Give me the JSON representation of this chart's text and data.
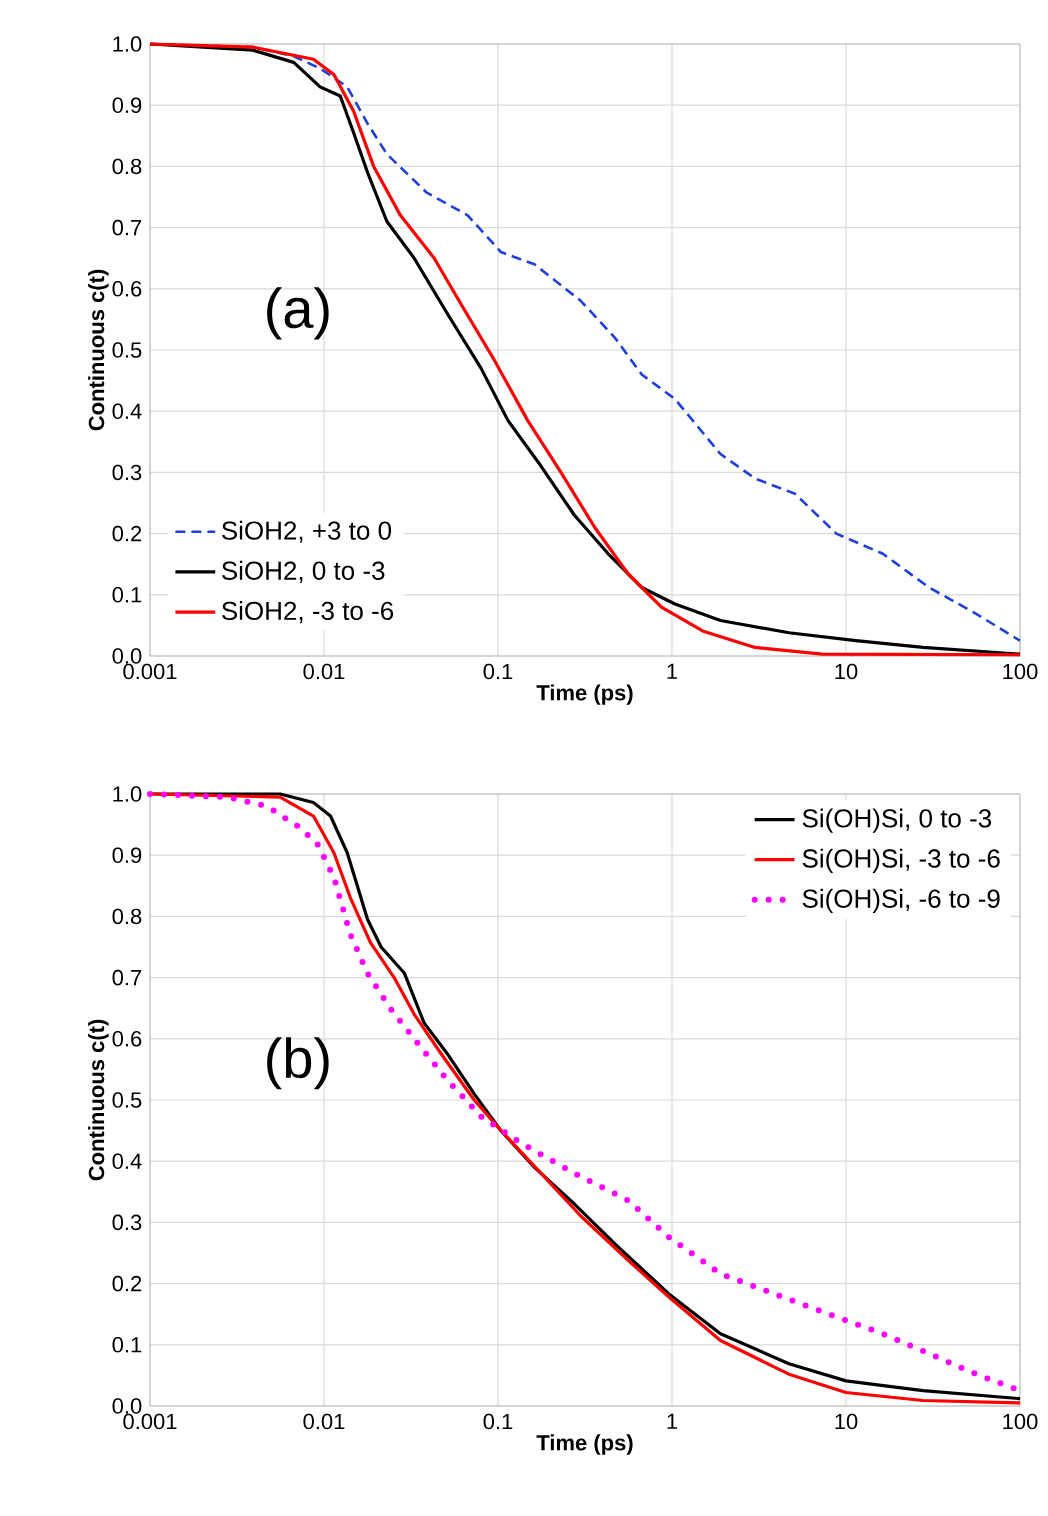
{
  "chart_data": [
    {
      "type": "line",
      "ylabel": "Continuous c(t)",
      "xlabel": "Time (ps)",
      "annotations": [
        "(a)"
      ],
      "log": "x",
      "grid": true,
      "legend": "bottom left",
      "marker": "none",
      "xlim": [
        0.001,
        100
      ],
      "xticks": [
        0.001,
        0.01,
        0.1,
        1,
        10,
        100
      ],
      "ylim": [
        0,
        1
      ],
      "yticks": [
        {
          "value": 0,
          "label": "0.0"
        },
        {
          "value": 0.1,
          "label": "0.1"
        },
        {
          "value": 0.2,
          "label": "0.2"
        },
        {
          "value": 0.3,
          "label": "0.3"
        },
        {
          "value": 0.4,
          "label": "0.4"
        },
        {
          "value": 0.5,
          "label": "0.5"
        },
        {
          "value": 0.6,
          "label": "0.6"
        },
        {
          "value": 0.7,
          "label": "0.7"
        },
        {
          "value": 0.8,
          "label": "0.8"
        },
        {
          "value": 0.9,
          "label": "0.9"
        },
        {
          "value": 1,
          "label": "1.0"
        }
      ],
      "series": [
        {
          "name": "SiOH2, +3 to 0",
          "color": "#1f3fdc",
          "line_style": "dashed",
          "x": [
            0.001,
            0.0039,
            0.0067,
            0.0095,
            0.0136,
            0.0178,
            0.023,
            0.039,
            0.067,
            0.104,
            0.162,
            0.3,
            0.47,
            0.67,
            1.04,
            1.9,
            3.0,
            5.1,
            8.8,
            16.3,
            30,
            56,
            100
          ],
          "values": [
            1.0,
            0.995,
            0.98,
            0.96,
            0.93,
            0.87,
            0.82,
            0.757,
            0.72,
            0.66,
            0.64,
            0.58,
            0.52,
            0.46,
            0.42,
            0.33,
            0.29,
            0.265,
            0.2,
            0.167,
            0.112,
            0.069,
            0.025
          ]
        },
        {
          "name": "SiOH2, 0 to -3",
          "color": "#000000",
          "line_style": "solid",
          "x": [
            0.001,
            0.0039,
            0.0067,
            0.0095,
            0.0124,
            0.0148,
            0.0178,
            0.023,
            0.033,
            0.051,
            0.08,
            0.114,
            0.177,
            0.275,
            0.43,
            0.67,
            1.04,
            1.9,
            4.7,
            11.4,
            27.7,
            100
          ],
          "values": [
            1.0,
            0.99,
            0.97,
            0.93,
            0.915,
            0.855,
            0.79,
            0.71,
            0.65,
            0.56,
            0.47,
            0.385,
            0.31,
            0.23,
            0.167,
            0.112,
            0.085,
            0.058,
            0.038,
            0.025,
            0.014,
            0.003
          ]
        },
        {
          "name": "SiOH2, -3 to -6",
          "color": "#ff0000",
          "line_style": "solid",
          "x": [
            0.001,
            0.0039,
            0.0087,
            0.0114,
            0.0148,
            0.0193,
            0.0275,
            0.043,
            0.061,
            0.095,
            0.148,
            0.23,
            0.36,
            0.56,
            0.87,
            1.5,
            3.0,
            7.3,
            100
          ],
          "values": [
            1.0,
            0.995,
            0.975,
            0.95,
            0.89,
            0.8,
            0.72,
            0.65,
            0.576,
            0.484,
            0.385,
            0.3,
            0.21,
            0.134,
            0.08,
            0.041,
            0.014,
            0.003,
            0.002
          ]
        }
      ]
    },
    {
      "type": "line",
      "ylabel": "Continuous c(t)",
      "xlabel": "Time (ps)",
      "annotations": [
        "(b)"
      ],
      "log": "x",
      "grid": true,
      "legend": "top right",
      "marker": "none",
      "xlim": [
        0.001,
        100
      ],
      "xticks": [
        0.001,
        0.01,
        0.1,
        1,
        10,
        100
      ],
      "ylim": [
        0,
        1
      ],
      "yticks": [
        {
          "value": 0,
          "label": "0.0"
        },
        {
          "value": 0.1,
          "label": "0.1"
        },
        {
          "value": 0.2,
          "label": "0.2"
        },
        {
          "value": 0.3,
          "label": "0.3"
        },
        {
          "value": 0.4,
          "label": "0.4"
        },
        {
          "value": 0.5,
          "label": "0.5"
        },
        {
          "value": 0.6,
          "label": "0.6"
        },
        {
          "value": 0.7,
          "label": "0.7"
        },
        {
          "value": 0.8,
          "label": "0.8"
        },
        {
          "value": 0.9,
          "label": "0.9"
        },
        {
          "value": 1,
          "label": "1.0"
        }
      ],
      "series": [
        {
          "name": "Si(OH)Si, 0 to -3",
          "color": "#000000",
          "line_style": "solid",
          "x": [
            0.001,
            0.0056,
            0.0087,
            0.0109,
            0.0136,
            0.0178,
            0.0213,
            0.029,
            0.0376,
            0.051,
            0.073,
            0.104,
            0.162,
            0.275,
            0.47,
            0.96,
            1.9,
            4.7,
            10,
            27.7,
            100
          ],
          "values": [
            1.0,
            1.0,
            0.986,
            0.964,
            0.904,
            0.795,
            0.75,
            0.707,
            0.626,
            0.576,
            0.51,
            0.45,
            0.39,
            0.33,
            0.265,
            0.183,
            0.118,
            0.069,
            0.041,
            0.025,
            0.012
          ]
        },
        {
          "name": "Si(OH)Si, -3 to -6",
          "color": "#ff0000",
          "line_style": "solid",
          "x": [
            0.001,
            0.0056,
            0.0087,
            0.0114,
            0.0142,
            0.0185,
            0.0253,
            0.033,
            0.047,
            0.073,
            0.104,
            0.177,
            0.3,
            0.56,
            0.96,
            1.9,
            4.7,
            10,
            27.7,
            100
          ],
          "values": [
            1.0,
            0.995,
            0.964,
            0.904,
            0.83,
            0.757,
            0.7,
            0.64,
            0.576,
            0.5,
            0.45,
            0.38,
            0.31,
            0.238,
            0.178,
            0.107,
            0.052,
            0.022,
            0.009,
            0.005
          ]
        },
        {
          "name": "Si(OH)Si, -6 to -9",
          "color": "#ff00ff",
          "line_style": "dotted",
          "x": [
            0.001,
            0.0028,
            0.0047,
            0.007,
            0.0091,
            0.0114,
            0.0142,
            0.0178,
            0.024,
            0.033,
            0.051,
            0.08,
            0.135,
            0.275,
            0.56,
            0.96,
            1.9,
            3.9,
            8.0,
            16.3,
            27.7,
            56,
            100
          ],
          "values": [
            1.0,
            0.995,
            0.98,
            0.948,
            0.92,
            0.864,
            0.77,
            0.707,
            0.65,
            0.6,
            0.533,
            0.473,
            0.43,
            0.38,
            0.336,
            0.276,
            0.216,
            0.183,
            0.15,
            0.118,
            0.09,
            0.052,
            0.025
          ]
        }
      ]
    }
  ]
}
